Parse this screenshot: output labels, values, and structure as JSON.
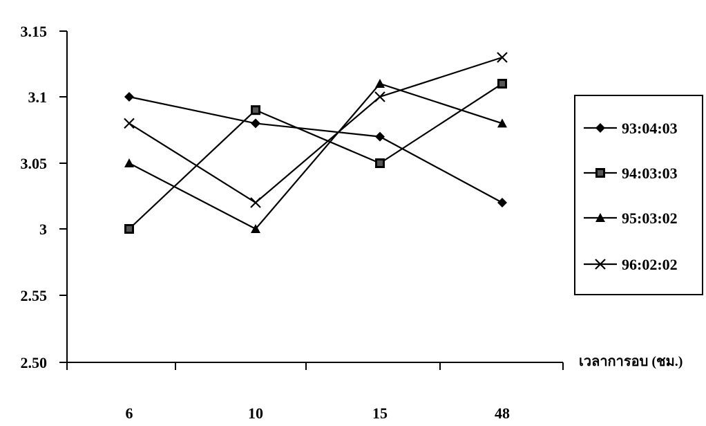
{
  "chart_data": {
    "type": "line",
    "title": "",
    "xlabel": "เวลาการอบ (ชม.)",
    "ylabel": "",
    "categories": [
      "6",
      "10",
      "15",
      "48"
    ],
    "yticks": [
      "3.15",
      "3.1",
      "3.05",
      "3",
      "2.55",
      "2.50"
    ],
    "ylim": [
      2.5,
      3.15
    ],
    "grid": false,
    "legend_position": "right",
    "series": [
      {
        "name": "93:04:03",
        "marker": "diamond",
        "values": [
          3.1,
          3.08,
          3.07,
          3.02
        ]
      },
      {
        "name": "94:03:03",
        "marker": "square",
        "values": [
          3.0,
          3.09,
          3.05,
          3.11
        ]
      },
      {
        "name": "95:03:02",
        "marker": "triangle",
        "values": [
          3.05,
          3.0,
          3.11,
          3.08
        ]
      },
      {
        "name": "96:02:02",
        "marker": "x",
        "values": [
          3.08,
          3.02,
          3.1,
          3.13
        ]
      }
    ],
    "line_color": "#000000"
  }
}
